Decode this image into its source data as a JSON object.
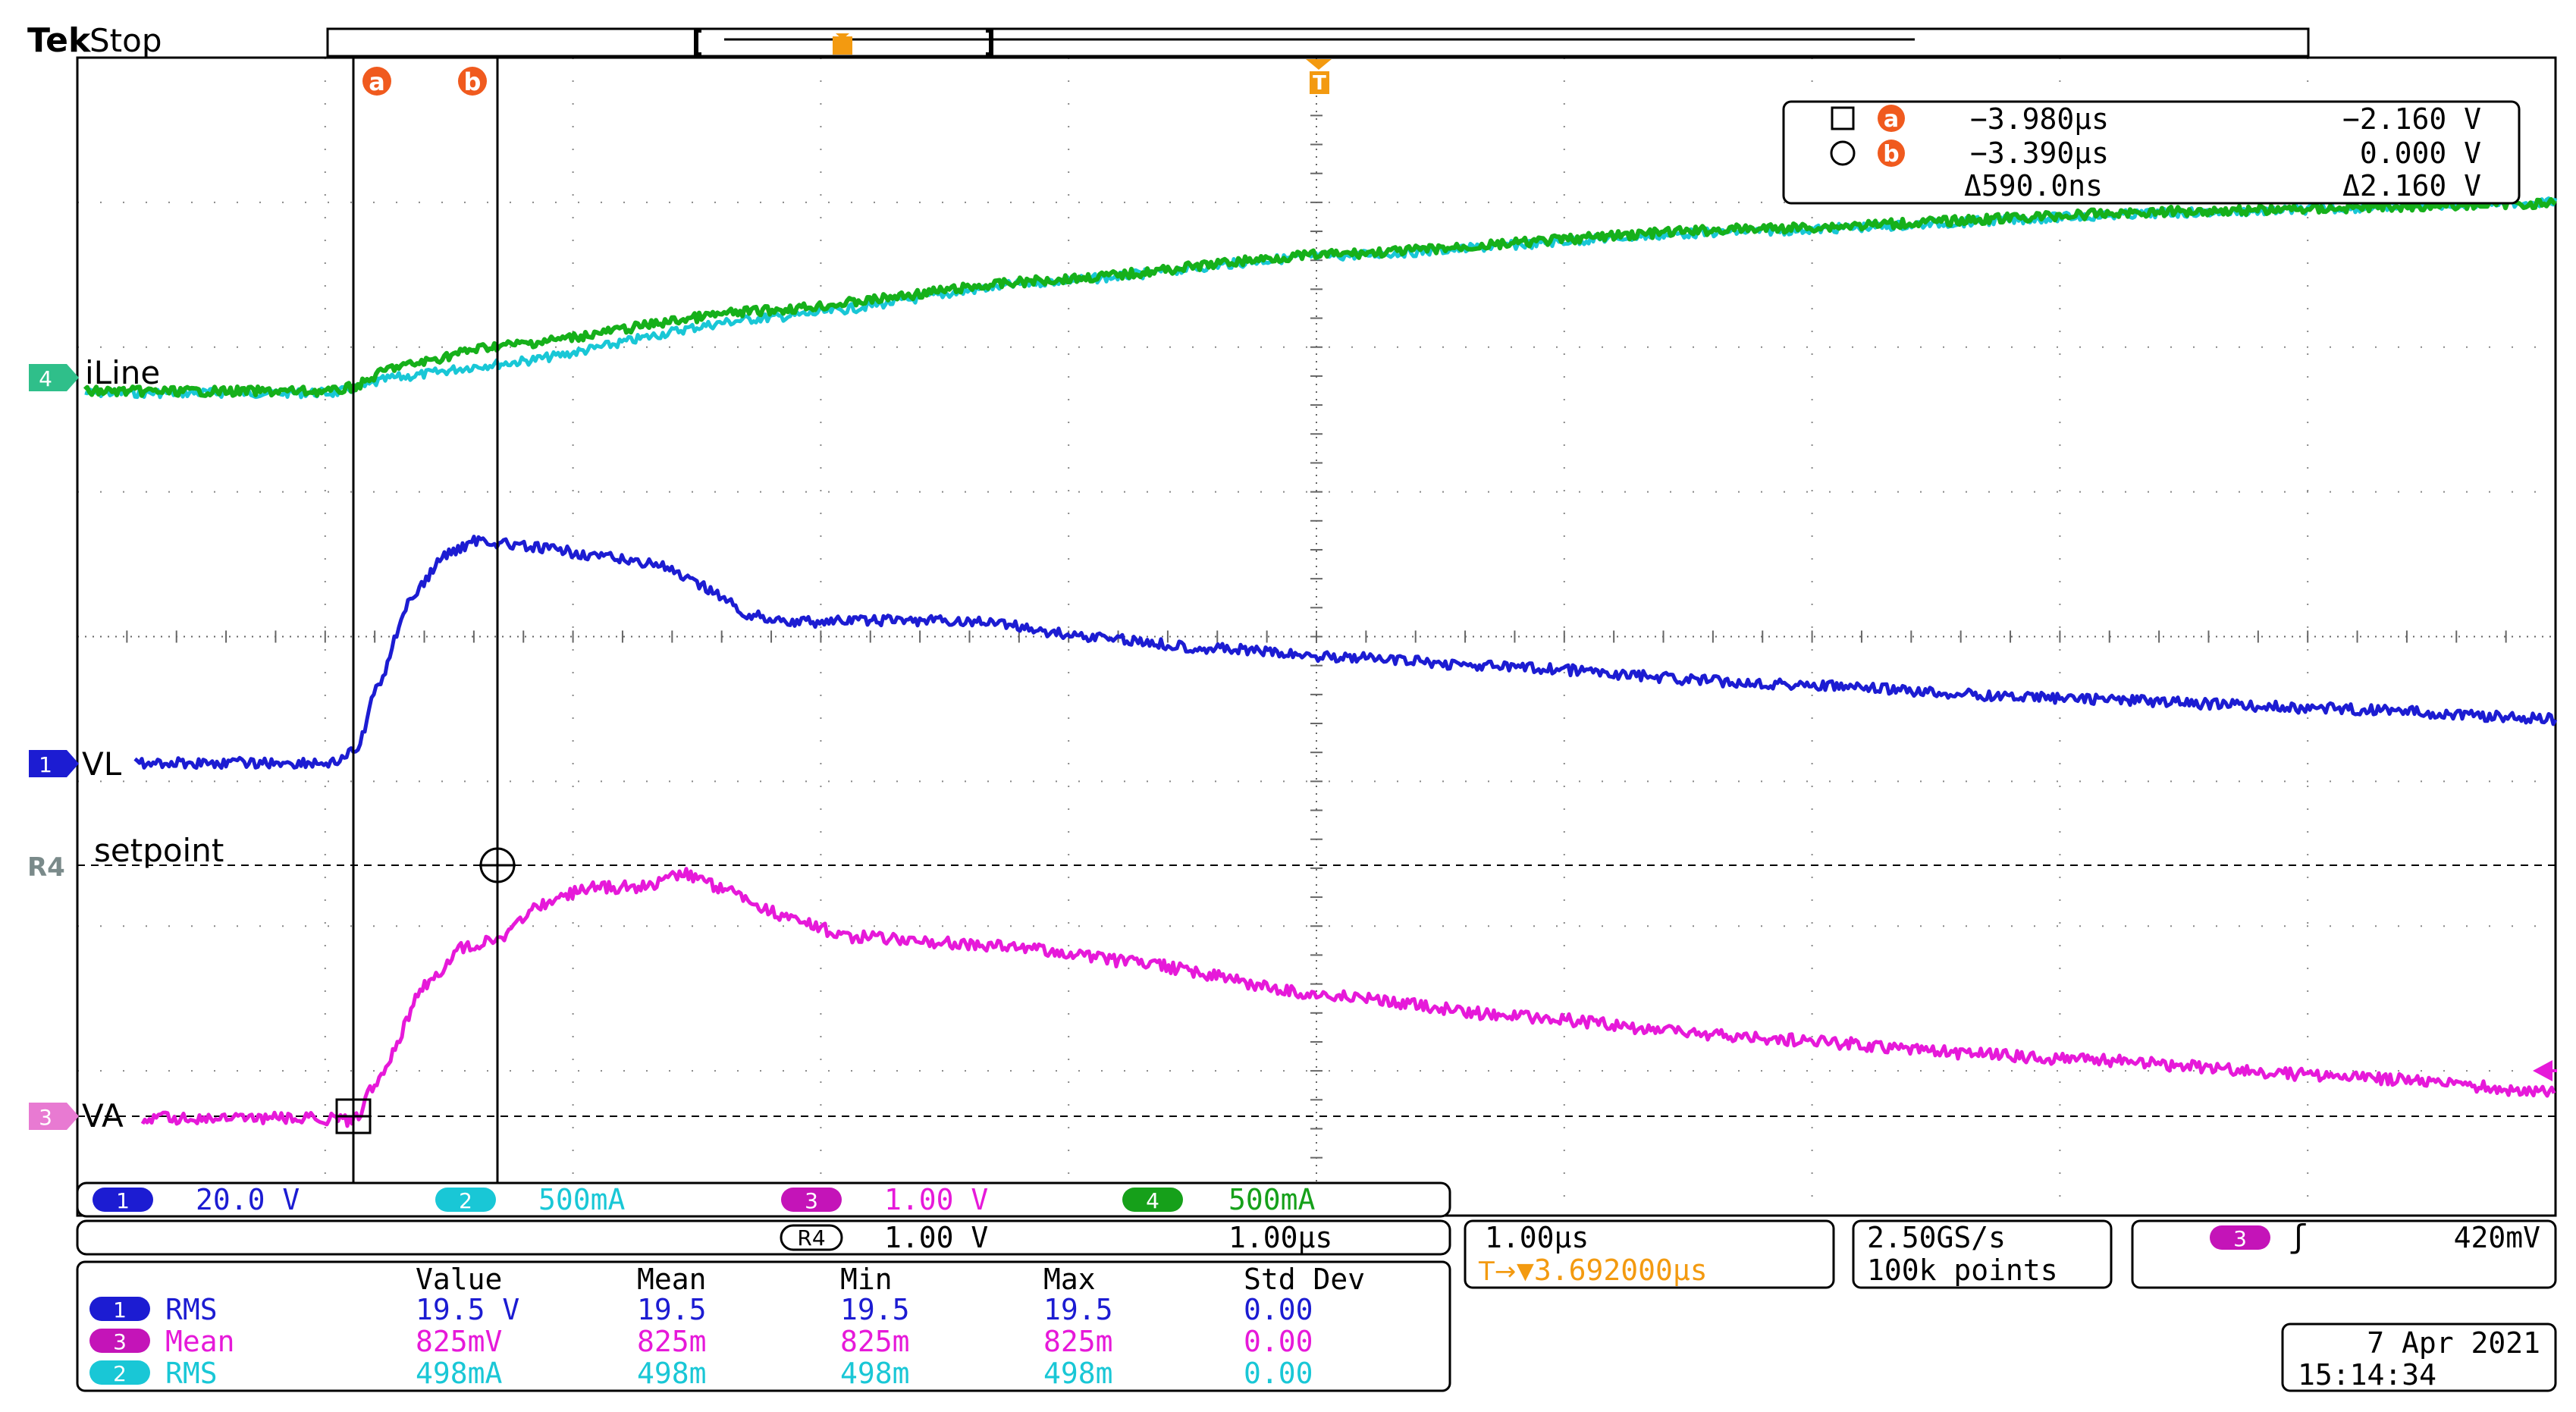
{
  "header": {
    "brand": "Tek",
    "status": "Stop"
  },
  "channels": {
    "ch1": {
      "label": "VL",
      "num": "1",
      "color": "#1c1cd2"
    },
    "ch2": {
      "num": "2",
      "color": "#19c7d6"
    },
    "ch3": {
      "label": "VA",
      "num": "3",
      "color": "#e619d9"
    },
    "ch4": {
      "label": "iLine",
      "num": "4",
      "color": "#16b01a"
    },
    "ref4": {
      "label": "setpoint",
      "num": "R4"
    }
  },
  "cursors": {
    "a_marker": "a",
    "b_marker": "b",
    "trigger_marker": "T",
    "readout": {
      "a_time": "−3.980µs",
      "a_value": "−2.160 V",
      "b_time": "−3.390µs",
      "b_value": "0.000 V",
      "delta_time": "Δ590.0ns",
      "delta_value": "Δ2.160 V"
    }
  },
  "scale_bar": {
    "ch1": {
      "num": "1",
      "value": "20.0 V"
    },
    "ch2": {
      "num": "2",
      "value": "500mA"
    },
    "ch3": {
      "num": "3",
      "value": "1.00 V"
    },
    "ch4": {
      "num": "4",
      "value": "500mA"
    },
    "ref": {
      "num": "R4",
      "value": "1.00 V",
      "time": "1.00µs"
    }
  },
  "timebase": {
    "per_div": "1.00µs",
    "trigger_pos": "▼3.692000µs",
    "trigger_icon": "T→"
  },
  "acquisition": {
    "rate": "2.50GS/s",
    "points": "100k points"
  },
  "trigger": {
    "channel": "3",
    "slope": "ʃ",
    "level": "420mV"
  },
  "measurements": {
    "headers": [
      "Value",
      "Mean",
      "Min",
      "Max",
      "Std Dev"
    ],
    "rows": [
      {
        "ch": "1",
        "name": "RMS",
        "color": "#1c1cd2",
        "cells": [
          "19.5 V",
          "19.5",
          "19.5",
          "19.5",
          "0.00"
        ]
      },
      {
        "ch": "3",
        "name": "Mean",
        "color": "#e619d9",
        "cells": [
          "825mV",
          "825m",
          "825m",
          "825m",
          "0.00"
        ]
      },
      {
        "ch": "2",
        "name": "RMS",
        "color": "#19c7d6",
        "cells": [
          "498mA",
          "498m",
          "498m",
          "498m",
          "0.00"
        ]
      }
    ]
  },
  "datetime": {
    "date": "7 Apr  2021",
    "time": "15:14:34"
  }
}
